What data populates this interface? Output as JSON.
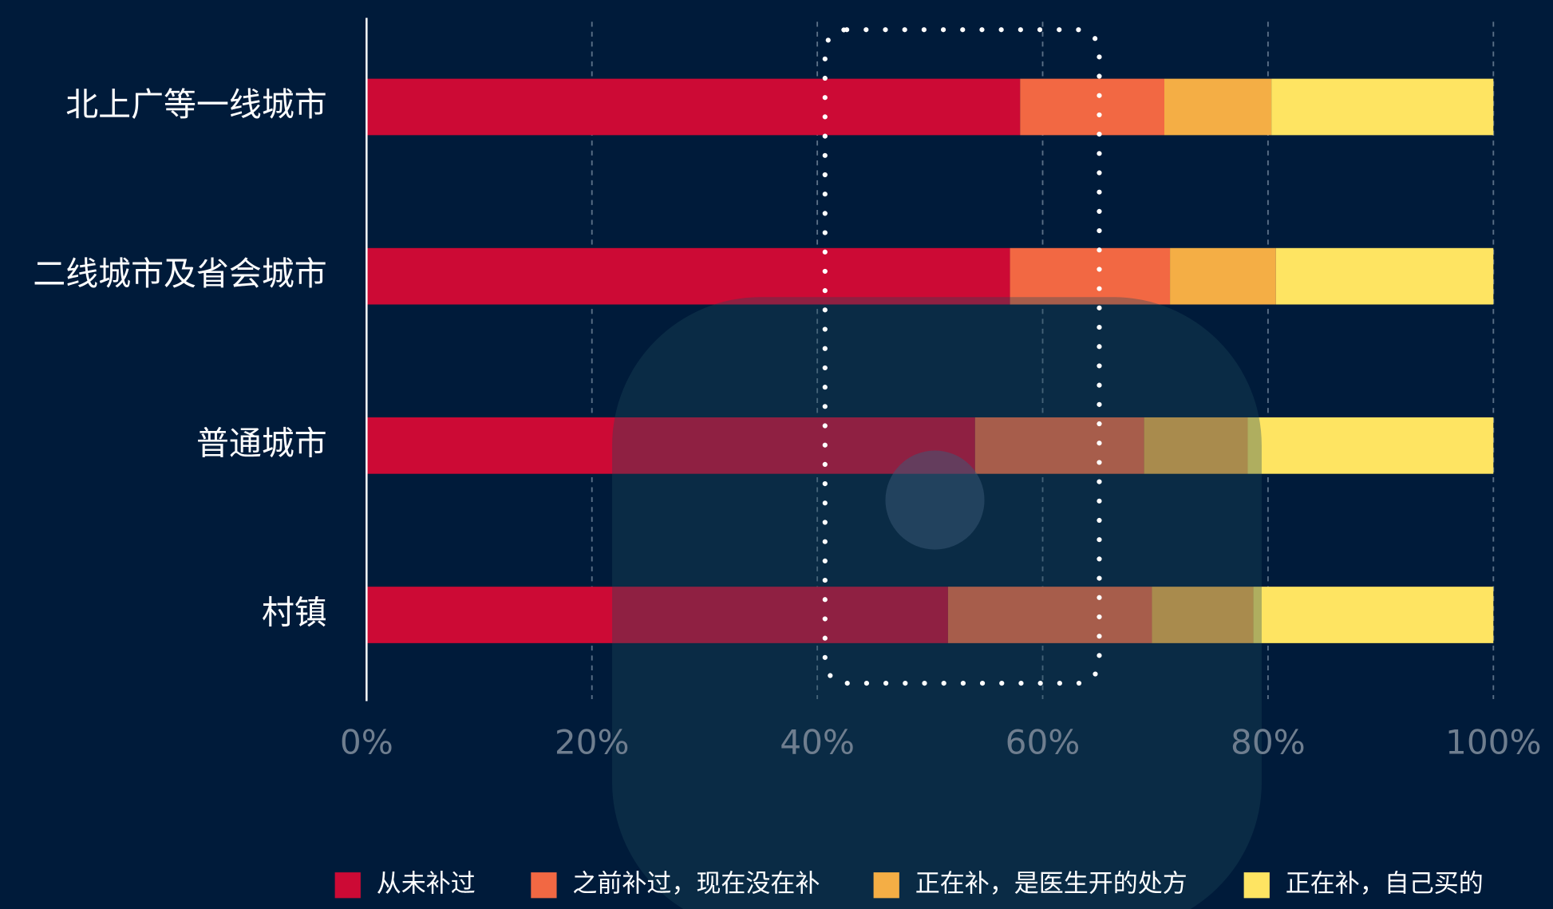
{
  "chart_data": {
    "type": "bar",
    "orientation": "horizontal",
    "stacked": true,
    "categories": [
      "北上广等一线城市",
      "二线城市及省会城市",
      "普通城市",
      "村镇"
    ],
    "series": [
      {
        "name": "从未补过",
        "color": "#cc0a35",
        "values": [
          58.0,
          57.1,
          54.0,
          51.6
        ]
      },
      {
        "name": "之前补过，现在没在补",
        "color": "#f26843",
        "values": [
          12.8,
          14.2,
          15.0,
          18.1
        ]
      },
      {
        "name": "正在补，是医生开的处方",
        "color": "#f4ae45",
        "values": [
          9.5,
          9.4,
          9.2,
          9.0
        ]
      },
      {
        "name": "正在补，自己买的",
        "color": "#fee462",
        "values": [
          19.7,
          19.3,
          21.8,
          21.3
        ]
      }
    ],
    "xlim": [
      0,
      100
    ],
    "xticks": [
      {
        "value": 0,
        "label": "0%"
      },
      {
        "value": 20,
        "label": "20%"
      },
      {
        "value": 40,
        "label": "40%"
      },
      {
        "value": 60,
        "label": "60%"
      },
      {
        "value": 80,
        "label": "80%"
      },
      {
        "value": 100,
        "label": "100%"
      }
    ],
    "grid": true
  }
}
